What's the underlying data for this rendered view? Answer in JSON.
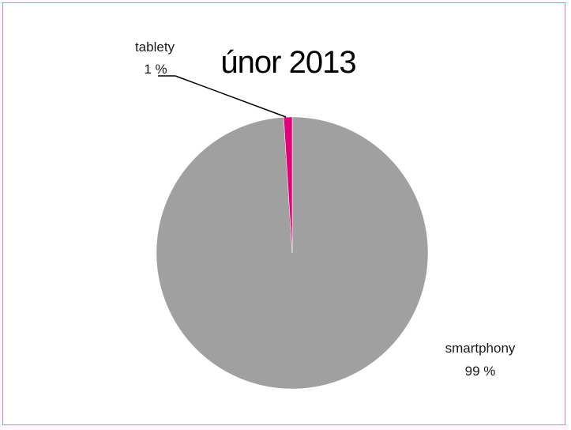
{
  "chart_data": {
    "type": "pie",
    "title": "únor 2013",
    "categories": [
      "smartphony",
      "tablety"
    ],
    "values": [
      99,
      1
    ],
    "value_labels": [
      "99 %",
      "1 %"
    ],
    "colors": [
      "#a0a0a0",
      "#e2007a"
    ],
    "legend": "none",
    "data_labels": "outside-with-leader"
  },
  "frame": {
    "border_color": "#e07ab5"
  }
}
